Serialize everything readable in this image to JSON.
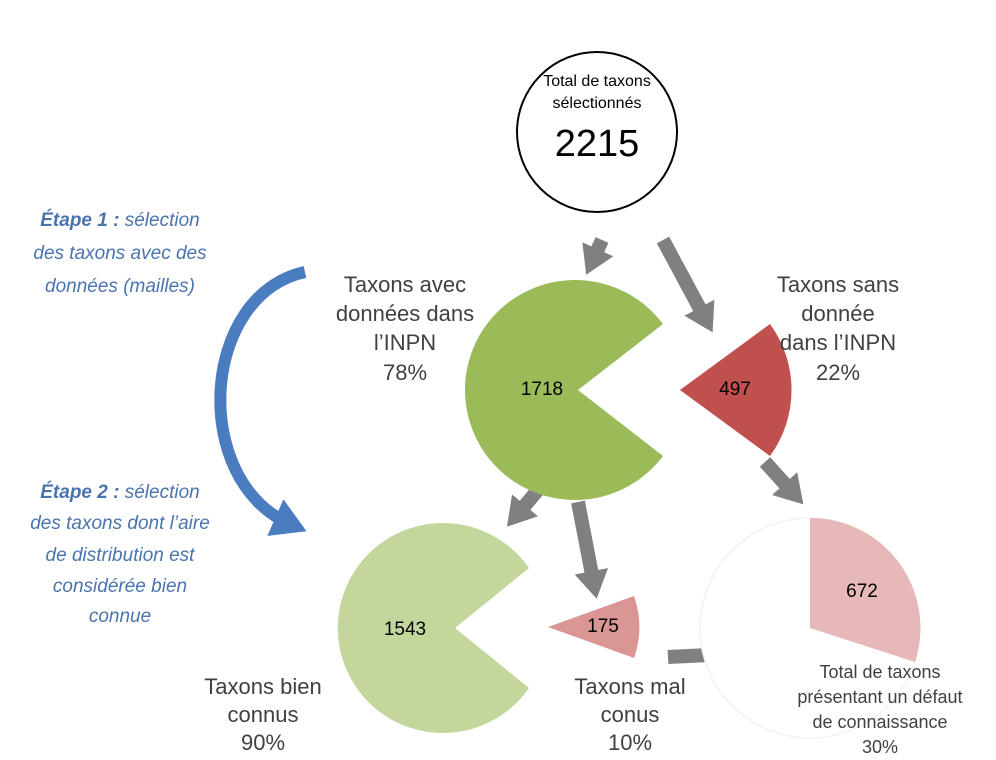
{
  "top": {
    "lines": [
      "Total de taxons",
      "sélectionnés"
    ],
    "value": 2215
  },
  "steps": [
    {
      "title": "Étape 1 :",
      "lines": [
        "sélection",
        "des taxons avec des",
        "données (mailles)"
      ]
    },
    {
      "title": "Étape 2 :",
      "lines": [
        "sélection",
        "des taxons dont l’aire",
        "de distribution est",
        "considérée bien",
        "connue"
      ]
    }
  ],
  "nodes": [
    {
      "lines": [
        "Taxons avec",
        "données dans",
        "l’INPN"
      ],
      "percent": "78%",
      "value": 1718
    },
    {
      "lines": [
        "Taxons sans",
        "donnée",
        "dans l’INPN"
      ],
      "percent": "22%",
      "value": 497
    },
    {
      "lines": [
        "Taxons bien",
        "connus"
      ],
      "percent": "90%",
      "value": 1543
    },
    {
      "lines": [
        "Taxons mal",
        "conus"
      ],
      "percent": "10%",
      "value": 175
    },
    {
      "lines": [
        "Total de taxons",
        "présentant un défaut",
        "de connaissance"
      ],
      "percent": "30%",
      "value": 672
    }
  ]
}
